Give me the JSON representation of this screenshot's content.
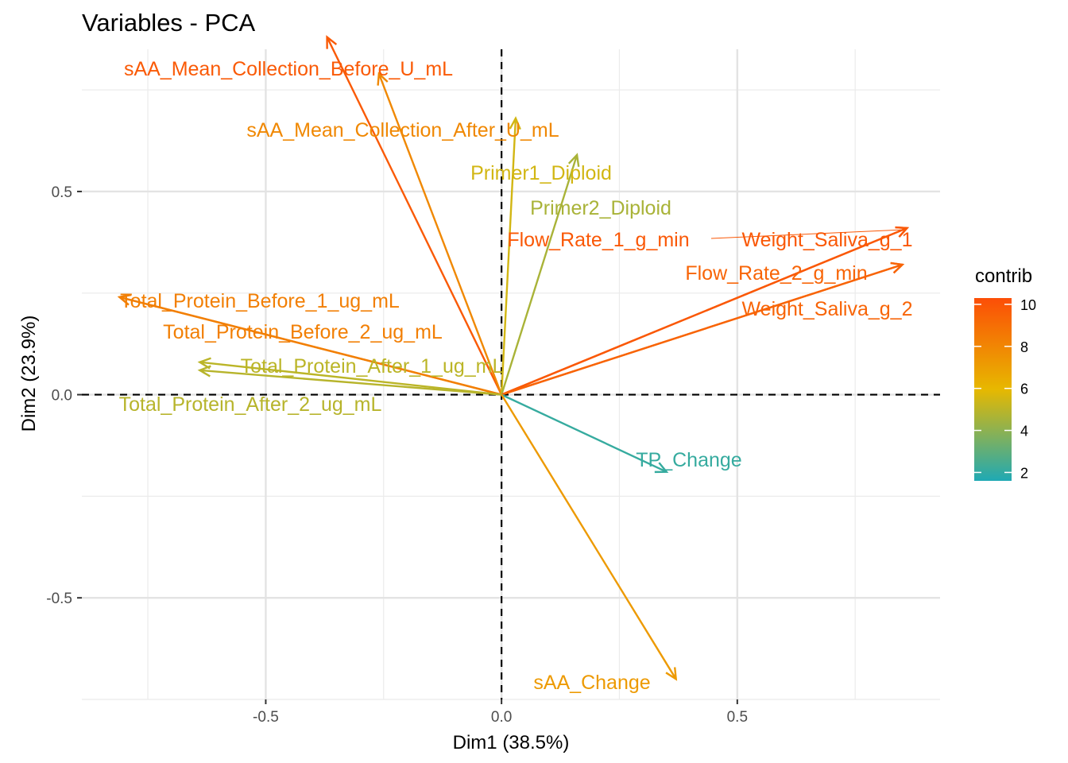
{
  "chart_data": {
    "type": "scatter",
    "subtype": "pca-variables-correlation-circle",
    "title": "Variables - PCA",
    "xlabel": "Dim1 (38.5%)",
    "ylabel": "Dim2 (23.9%)",
    "xlim": [
      -0.89,
      0.93
    ],
    "ylim": [
      -0.75,
      0.85
    ],
    "x_ticks": [
      {
        "value": -0.5,
        "label": "-0.5"
      },
      {
        "value": 0.0,
        "label": "0.0"
      },
      {
        "value": 0.5,
        "label": "0.5"
      }
    ],
    "y_ticks": [
      {
        "value": -0.5,
        "label": "-0.5"
      },
      {
        "value": 0.0,
        "label": "0.0"
      },
      {
        "value": 0.5,
        "label": "0.5"
      }
    ],
    "grid": true,
    "reference_lines": {
      "x": 0,
      "y": 0,
      "style": "dashed"
    },
    "legend": {
      "title": "contrib",
      "position": "right",
      "range": [
        1.6,
        10.3
      ],
      "ticks": [
        {
          "value": 2,
          "label": "2"
        },
        {
          "value": 4,
          "label": "4"
        },
        {
          "value": 6,
          "label": "6"
        },
        {
          "value": 8,
          "label": "8"
        },
        {
          "value": 10,
          "label": "10"
        }
      ],
      "gradient": [
        "#1fa9b4",
        "#e7b800",
        "#fc4e07"
      ]
    },
    "variables": [
      {
        "name": "sAA_Mean_Collection_Before_U_mL",
        "x": -0.37,
        "y": 0.88,
        "contrib": 9.8
      },
      {
        "name": "sAA_Mean_Collection_After_U_mL",
        "x": -0.26,
        "y": 0.79,
        "contrib": 7.9
      },
      {
        "name": "Primer1_Diploid",
        "x": 0.03,
        "y": 0.68,
        "contrib": 5.5
      },
      {
        "name": "Primer2_Diploid",
        "x": 0.16,
        "y": 0.59,
        "contrib": 4.6
      },
      {
        "name": "Flow_Rate_1_g_min",
        "x": 0.86,
        "y": 0.41,
        "contrib": 9.9
      },
      {
        "name": "Weight_Saliva_g_1",
        "x": 0.86,
        "y": 0.41,
        "contrib": 9.9
      },
      {
        "name": "Flow_Rate_2_g_min",
        "x": 0.85,
        "y": 0.32,
        "contrib": 9.4
      },
      {
        "name": "Weight_Saliva_g_2",
        "x": 0.85,
        "y": 0.32,
        "contrib": 9.4
      },
      {
        "name": "Total_Protein_Before_1_ug_mL",
        "x": -0.81,
        "y": 0.24,
        "contrib": 8.3
      },
      {
        "name": "Total_Protein_Before_2_ug_mL",
        "x": -0.81,
        "y": 0.24,
        "contrib": 8.3
      },
      {
        "name": "Total_Protein_After_1_ug_mL",
        "x": -0.64,
        "y": 0.08,
        "contrib": 5.0
      },
      {
        "name": "Total_Protein_After_2_ug_mL",
        "x": -0.64,
        "y": 0.06,
        "contrib": 4.9
      },
      {
        "name": "TP_Change",
        "x": 0.35,
        "y": -0.19,
        "contrib": 2.1
      },
      {
        "name": "sAA_Change",
        "x": 0.37,
        "y": -0.7,
        "contrib": 7.2
      }
    ]
  }
}
